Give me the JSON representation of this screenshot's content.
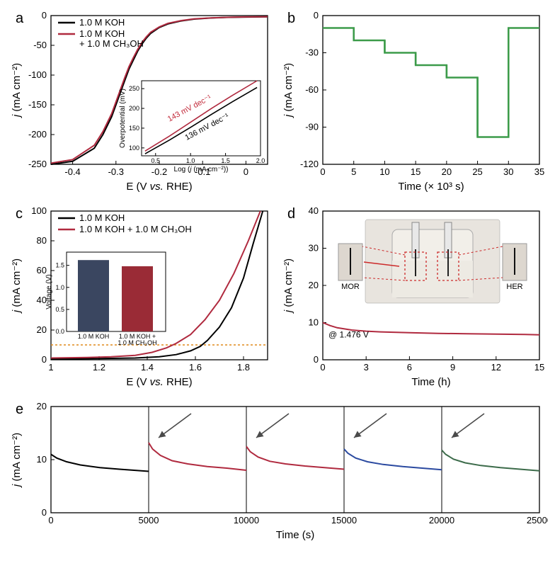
{
  "colors": {
    "axis": "#000000",
    "series_black": "#000000",
    "series_red": "#b02a3f",
    "series_green": "#3c9b4a",
    "series_blue": "#2b4aa0",
    "series_gray": "#555555",
    "series_darkred": "#8a2230",
    "bar_navy": "#3a4660",
    "bar_red": "#9a2b36",
    "dotted_orange": "#e08a1a",
    "arrow_gray": "#4a4a4a",
    "inset_red_text": "#c22a3a",
    "photo_bg": "#d6cbc2",
    "photo_glass": "#e8e4de",
    "photo_liquid": "#f2efe9",
    "photo_dashed": "#cc2a2a"
  },
  "panel_a": {
    "label": "a",
    "type": "line",
    "xlabel": "E (V vs. RHE)",
    "ylabel": "j (mA cm⁻²)",
    "xlim": [
      -0.45,
      0.05
    ],
    "ylim": [
      -250,
      0
    ],
    "xticks": [
      -0.4,
      -0.3,
      -0.2,
      -0.1,
      0.0
    ],
    "yticks": [
      -250,
      -200,
      -150,
      -100,
      -50,
      0
    ],
    "legend": [
      {
        "label": "1.0 M KOH",
        "color": "#000000"
      },
      {
        "label": "1.0 M KOH\n+ 1.0 M CH₃OH",
        "color": "#b02a3f"
      }
    ],
    "series": [
      {
        "color": "#000000",
        "points": [
          [
            -0.45,
            -250
          ],
          [
            -0.4,
            -245
          ],
          [
            -0.35,
            -223
          ],
          [
            -0.33,
            -200
          ],
          [
            -0.31,
            -170
          ],
          [
            -0.3,
            -150
          ],
          [
            -0.29,
            -130
          ],
          [
            -0.28,
            -110
          ],
          [
            -0.27,
            -90
          ],
          [
            -0.26,
            -75
          ],
          [
            -0.25,
            -60
          ],
          [
            -0.24,
            -48
          ],
          [
            -0.23,
            -38
          ],
          [
            -0.22,
            -30
          ],
          [
            -0.2,
            -20
          ],
          [
            -0.18,
            -14
          ],
          [
            -0.15,
            -9
          ],
          [
            -0.12,
            -6
          ],
          [
            -0.08,
            -4
          ],
          [
            -0.04,
            -3
          ],
          [
            0.0,
            -2.5
          ],
          [
            0.05,
            -2
          ]
        ]
      },
      {
        "color": "#b02a3f",
        "points": [
          [
            -0.45,
            -248
          ],
          [
            -0.4,
            -242
          ],
          [
            -0.35,
            -218
          ],
          [
            -0.33,
            -195
          ],
          [
            -0.31,
            -165
          ],
          [
            -0.3,
            -145
          ],
          [
            -0.29,
            -125
          ],
          [
            -0.28,
            -105
          ],
          [
            -0.27,
            -86
          ],
          [
            -0.26,
            -71
          ],
          [
            -0.25,
            -57
          ],
          [
            -0.24,
            -45
          ],
          [
            -0.23,
            -36
          ],
          [
            -0.22,
            -28
          ],
          [
            -0.2,
            -19
          ],
          [
            -0.18,
            -13
          ],
          [
            -0.15,
            -8.5
          ],
          [
            -0.12,
            -5.5
          ],
          [
            -0.08,
            -3.8
          ],
          [
            -0.04,
            -2.8
          ],
          [
            0.0,
            -2.3
          ],
          [
            0.05,
            -1.9
          ]
        ]
      }
    ],
    "inset": {
      "xlabel": "Log (j (mA cm⁻²))",
      "ylabel": "Overpotential (mV)",
      "xlim": [
        0.3,
        2.0
      ],
      "ylim": [
        80,
        270
      ],
      "xticks": [
        0.5,
        1.0,
        1.5,
        2.0
      ],
      "yticks": [
        100,
        150,
        200,
        250
      ],
      "series": [
        {
          "color": "#b02a3f",
          "slope_label": "143 mV dec⁻¹",
          "points": [
            [
              0.35,
              92
            ],
            [
              0.7,
              130
            ],
            [
              1.0,
              165
            ],
            [
              1.3,
              200
            ],
            [
              1.6,
              233
            ],
            [
              1.95,
              270
            ]
          ]
        },
        {
          "color": "#000000",
          "slope_label": "136 mV dec⁻¹",
          "points": [
            [
              0.35,
              85
            ],
            [
              0.7,
              120
            ],
            [
              1.0,
              152
            ],
            [
              1.3,
              185
            ],
            [
              1.6,
              217
            ],
            [
              1.95,
              253
            ]
          ]
        }
      ]
    }
  },
  "panel_b": {
    "label": "b",
    "type": "step-line",
    "xlabel": "Time (× 10³ s)",
    "ylabel": "j (mA cm⁻²)",
    "xlim": [
      0,
      35
    ],
    "ylim": [
      -120,
      0
    ],
    "xticks": [
      0,
      5,
      10,
      15,
      20,
      25,
      30,
      35
    ],
    "yticks": [
      -120,
      -90,
      -60,
      -30,
      0
    ],
    "series_color": "#3c9b4a",
    "steps": [
      {
        "t0": 0,
        "t1": 5,
        "j": -10
      },
      {
        "t0": 5,
        "t1": 10,
        "j": -20
      },
      {
        "t0": 10,
        "t1": 15,
        "j": -30
      },
      {
        "t0": 15,
        "t1": 20,
        "j": -40
      },
      {
        "t0": 20,
        "t1": 25,
        "j": -50
      },
      {
        "t0": 25,
        "t1": 30,
        "j": -98
      },
      {
        "t0": 30,
        "t1": 35,
        "j": -10
      }
    ]
  },
  "panel_c": {
    "label": "c",
    "type": "line",
    "xlabel": "E (V vs. RHE)",
    "ylabel": "j (mA cm⁻²)",
    "xlim": [
      1.0,
      1.9
    ],
    "ylim": [
      0,
      100
    ],
    "xticks": [
      1.0,
      1.2,
      1.4,
      1.6,
      1.8
    ],
    "yticks": [
      0,
      20,
      40,
      60,
      80,
      100
    ],
    "dotted_y": 10,
    "legend": [
      {
        "label": "1.0 M KOH",
        "color": "#000000"
      },
      {
        "label": "1.0 M KOH + 1.0 M CH₃OH",
        "color": "#b02a3f"
      }
    ],
    "series": [
      {
        "color": "#000000",
        "points": [
          [
            1.0,
            0.5
          ],
          [
            1.2,
            0.8
          ],
          [
            1.35,
            1.2
          ],
          [
            1.45,
            2
          ],
          [
            1.52,
            3.5
          ],
          [
            1.58,
            6
          ],
          [
            1.62,
            9
          ],
          [
            1.65,
            13
          ],
          [
            1.7,
            22
          ],
          [
            1.75,
            35
          ],
          [
            1.8,
            55
          ],
          [
            1.84,
            78
          ],
          [
            1.88,
            100
          ]
        ]
      },
      {
        "color": "#b02a3f",
        "points": [
          [
            1.0,
            1.2
          ],
          [
            1.15,
            1.5
          ],
          [
            1.25,
            2
          ],
          [
            1.35,
            3
          ],
          [
            1.42,
            5
          ],
          [
            1.48,
            8
          ],
          [
            1.52,
            11
          ],
          [
            1.58,
            17
          ],
          [
            1.64,
            27
          ],
          [
            1.7,
            40
          ],
          [
            1.76,
            58
          ],
          [
            1.82,
            80
          ],
          [
            1.87,
            100
          ]
        ]
      }
    ],
    "inset_bar": {
      "ylabel": "Voltage (V)",
      "ylim": [
        0,
        1.8
      ],
      "yticks": [
        0.0,
        0.5,
        1.0,
        1.5
      ],
      "bars": [
        {
          "label": "1.0 M KOH",
          "value": 1.62,
          "color": "#3a4660"
        },
        {
          "label": "1.0 M KOH +\n1.0 M CH₃OH",
          "value": 1.48,
          "color": "#9a2b36"
        }
      ]
    }
  },
  "panel_d": {
    "label": "d",
    "type": "line",
    "xlabel": "Time (h)",
    "ylabel": "j (mA cm⁻²)",
    "xlim": [
      0,
      15
    ],
    "ylim": [
      0,
      40
    ],
    "xticks": [
      0,
      3,
      6,
      9,
      12,
      15
    ],
    "yticks": [
      0,
      10,
      20,
      30,
      40
    ],
    "annotation": "@ 1.476 V",
    "photo_labels": {
      "left": "MOR",
      "right": "HER"
    },
    "series": [
      {
        "color": "#b02a3f",
        "points": [
          [
            0,
            10
          ],
          [
            0.5,
            9.2
          ],
          [
            1,
            8.6
          ],
          [
            2,
            8.0
          ],
          [
            3,
            7.7
          ],
          [
            4,
            7.5
          ],
          [
            6,
            7.3
          ],
          [
            8,
            7.1
          ],
          [
            10,
            7.0
          ],
          [
            12,
            6.9
          ],
          [
            14,
            6.8
          ],
          [
            15,
            6.7
          ]
        ]
      }
    ]
  },
  "panel_e": {
    "label": "e",
    "type": "line-segments",
    "xlabel": "Time (s)",
    "ylabel": "j (mA cm⁻²)",
    "xlim": [
      0,
      25000
    ],
    "ylim": [
      0,
      20
    ],
    "xticks": [
      0,
      5000,
      10000,
      15000,
      20000,
      25000
    ],
    "yticks": [
      0,
      10,
      20
    ],
    "dividers": [
      5000,
      10000,
      15000,
      20000
    ],
    "arrow_at": [
      5000,
      10000,
      15000,
      20000
    ],
    "segments": [
      {
        "color": "#000000",
        "points": [
          [
            0,
            11.0
          ],
          [
            300,
            10.3
          ],
          [
            800,
            9.6
          ],
          [
            1500,
            9.0
          ],
          [
            2500,
            8.5
          ],
          [
            3500,
            8.2
          ],
          [
            5000,
            7.8
          ]
        ]
      },
      {
        "color": "#b02a3f",
        "points": [
          [
            5000,
            13.2
          ],
          [
            5200,
            12.0
          ],
          [
            5600,
            10.8
          ],
          [
            6200,
            9.8
          ],
          [
            7000,
            9.2
          ],
          [
            8000,
            8.7
          ],
          [
            9000,
            8.4
          ],
          [
            10000,
            8.0
          ]
        ]
      },
      {
        "color": "#b02a3f",
        "points": [
          [
            10000,
            12.5
          ],
          [
            10200,
            11.5
          ],
          [
            10600,
            10.5
          ],
          [
            11200,
            9.7
          ],
          [
            12000,
            9.2
          ],
          [
            13000,
            8.8
          ],
          [
            14000,
            8.5
          ],
          [
            15000,
            8.2
          ]
        ]
      },
      {
        "color": "#2b4aa0",
        "points": [
          [
            15000,
            12.0
          ],
          [
            15200,
            11.2
          ],
          [
            15600,
            10.3
          ],
          [
            16200,
            9.6
          ],
          [
            17000,
            9.1
          ],
          [
            18000,
            8.7
          ],
          [
            19000,
            8.4
          ],
          [
            20000,
            8.1
          ]
        ]
      },
      {
        "color": "#3c6b4a",
        "points": [
          [
            20000,
            11.8
          ],
          [
            20200,
            11.0
          ],
          [
            20600,
            10.1
          ],
          [
            21200,
            9.4
          ],
          [
            22000,
            8.9
          ],
          [
            23000,
            8.5
          ],
          [
            24000,
            8.2
          ],
          [
            25000,
            7.9
          ]
        ]
      }
    ]
  }
}
